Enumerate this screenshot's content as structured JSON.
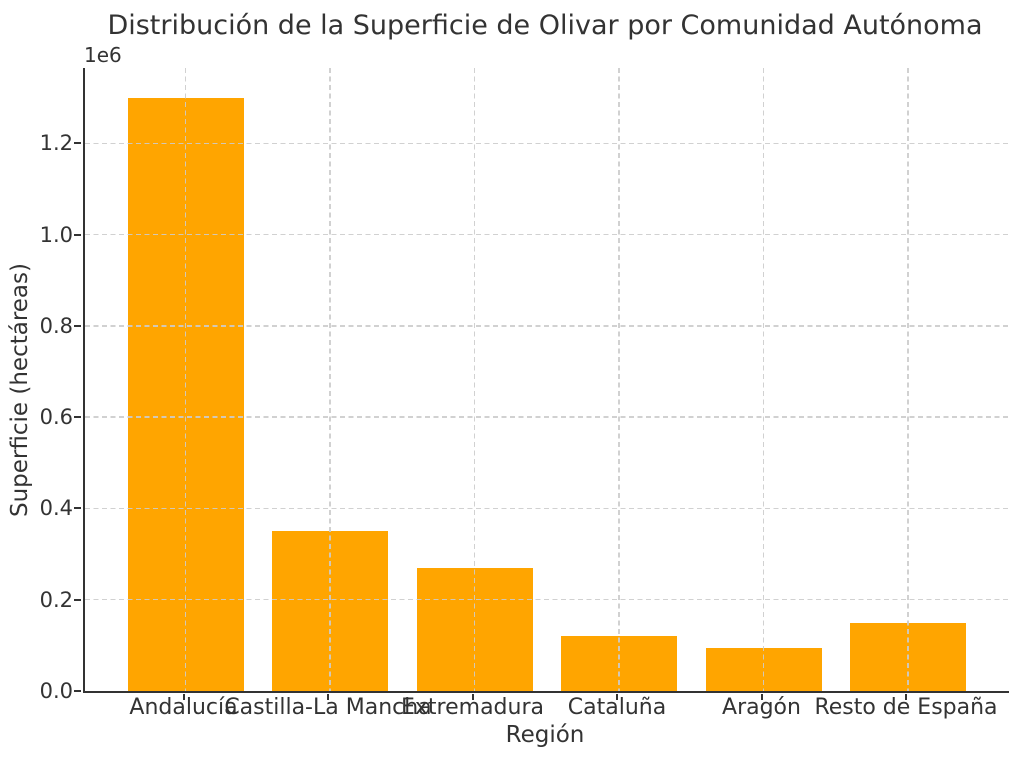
{
  "figure": {
    "background": "#ffffff",
    "text_color": "#333333",
    "spine_color": "#333333",
    "grid_color": "#cccccc"
  },
  "chart_data": {
    "type": "bar",
    "title": "Distribución de la Superficie de Olivar por Comunidad Autónoma",
    "xlabel": "Región",
    "ylabel": "Superficie (hectáreas)",
    "y_offset_label": "1e6",
    "categories": [
      "Andalucía",
      "Castilla-La Mancha",
      "Extremadura",
      "Cataluña",
      "Aragón",
      "Resto de España"
    ],
    "values": [
      1300000,
      350000,
      270000,
      120000,
      95000,
      150000
    ],
    "bar_color": "#FFA500",
    "ylim": [
      0,
      1365000
    ],
    "yticks": [
      0,
      200000,
      400000,
      600000,
      800000,
      1000000,
      1200000
    ],
    "ytick_labels": [
      "0.0",
      "0.2",
      "0.4",
      "0.6",
      "0.8",
      "1.0",
      "1.2"
    ],
    "grid": true,
    "grid_linestyle": "dashed",
    "grid_above_bars": true,
    "legend": null
  }
}
